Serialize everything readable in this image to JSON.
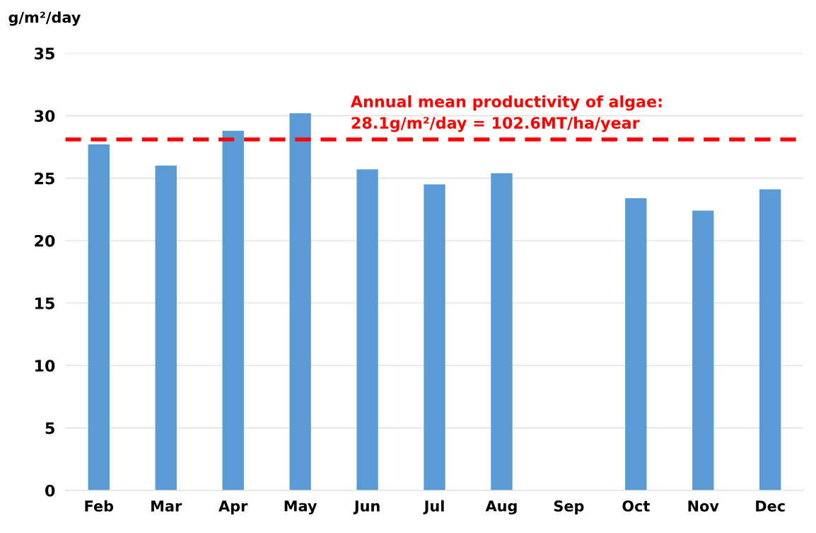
{
  "chart_data": {
    "type": "bar",
    "ylabel": "g/m²/day",
    "categories": [
      "Feb",
      "Mar",
      "Apr",
      "May",
      "Jun",
      "Jul",
      "Aug",
      "Sep",
      "Oct",
      "Nov",
      "Dec"
    ],
    "values": [
      27.7,
      26.0,
      28.8,
      30.2,
      25.7,
      24.5,
      25.4,
      null,
      23.4,
      22.4,
      24.1
    ],
    "color": "#5b9bd5",
    "ylim": [
      0,
      35
    ],
    "yticks": [
      0,
      5,
      10,
      15,
      20,
      25,
      30,
      35
    ],
    "grid": "y",
    "ref_lines": [
      {
        "axis": "y",
        "value": 28.1,
        "label": "Annual mean productivity of algae:\n28.1g/m²/day = 102.6MT/ha/year",
        "color": "#ff0000",
        "line_style": "dashed"
      }
    ]
  }
}
